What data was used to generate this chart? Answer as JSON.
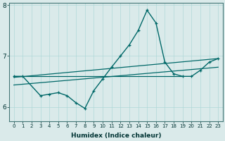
{
  "xlabel": "Humidex (Indice chaleur)",
  "background_color": "#daeaea",
  "grid_color": "#b0d8d8",
  "line_color": "#006868",
  "x_ticks": [
    0,
    1,
    2,
    3,
    4,
    5,
    6,
    7,
    8,
    9,
    10,
    11,
    12,
    13,
    14,
    15,
    16,
    17,
    18,
    19,
    20,
    21,
    22,
    23
  ],
  "y_ticks": [
    6,
    7,
    8
  ],
  "ylim": [
    5.72,
    8.05
  ],
  "xlim": [
    -0.5,
    23.5
  ],
  "series": {
    "main": {
      "x": [
        0,
        1,
        3,
        4,
        5,
        6,
        7,
        8,
        9,
        10,
        11,
        12,
        13,
        14,
        15,
        16,
        17,
        18,
        19,
        20,
        21,
        22,
        23
      ],
      "y": [
        6.6,
        6.6,
        6.22,
        6.25,
        6.28,
        6.22,
        6.08,
        5.97,
        6.32,
        6.55,
        6.78,
        7.0,
        7.22,
        7.5,
        7.9,
        7.65,
        6.88,
        6.65,
        6.6,
        6.6,
        6.72,
        6.88,
        6.95
      ]
    },
    "line_flat": {
      "x": [
        0,
        19
      ],
      "y": [
        6.6,
        6.6
      ]
    },
    "line_diagonal": {
      "x": [
        0,
        23
      ],
      "y": [
        6.43,
        6.78
      ]
    },
    "line_upper": {
      "x": [
        0,
        23
      ],
      "y": [
        6.58,
        6.95
      ]
    }
  }
}
